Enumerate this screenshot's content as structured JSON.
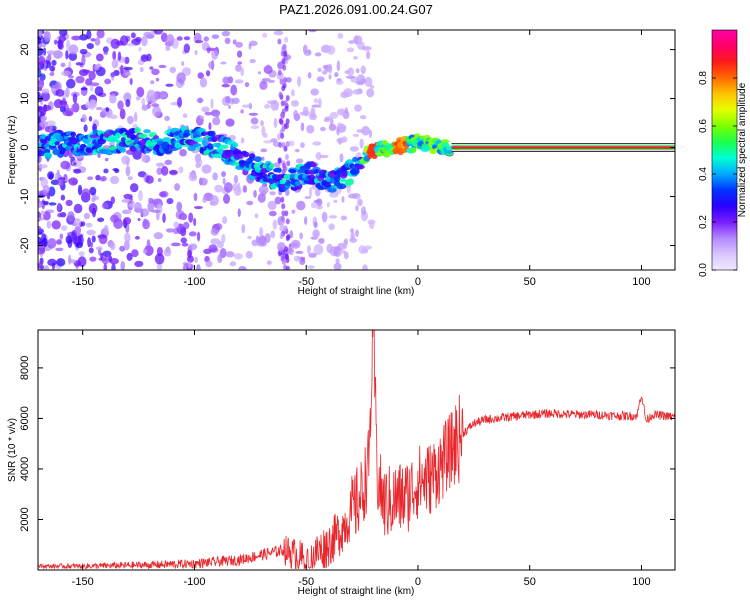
{
  "title": "PAZ1.2026.091.00.24.G07",
  "chart_data": [
    {
      "type": "heatmap",
      "xlabel": "Height of straight line (km)",
      "ylabel": "Frequency (Hz)",
      "xlim": [
        -170,
        115
      ],
      "ylim": [
        -25,
        24
      ],
      "xticks": [
        -150,
        -100,
        -50,
        0,
        50,
        100
      ],
      "yticks": [
        -20,
        -10,
        0,
        10,
        20
      ],
      "colorbar": {
        "label": "Normalized spectral amplitude",
        "range": [
          0,
          1
        ],
        "ticks": [
          "0.0",
          "0.2",
          "0.4",
          "0.6",
          "0.8"
        ],
        "tick_values": [
          0.0,
          0.2,
          0.4,
          0.6,
          0.8
        ],
        "colors": [
          "#f0eaff",
          "#d9c4ff",
          "#b388ff",
          "#7a1cff",
          "#2a00ff",
          "#0033ff",
          "#00aaff",
          "#00ffd5",
          "#1aff4d",
          "#7cff00",
          "#e6ff00",
          "#ffc400",
          "#ff6a00",
          "#ff1a1a",
          "#ff0066",
          "#ff00a8"
        ]
      },
      "ridge": [
        {
          "x": -170,
          "y": 0.0
        },
        {
          "x": -150,
          "y": 1.0
        },
        {
          "x": -130,
          "y": 1.5
        },
        {
          "x": -115,
          "y": 1.0
        },
        {
          "x": -100,
          "y": 2.0
        },
        {
          "x": -90,
          "y": 0.5
        },
        {
          "x": -80,
          "y": -2.0
        },
        {
          "x": -70,
          "y": -5.0
        },
        {
          "x": -60,
          "y": -7.0
        },
        {
          "x": -50,
          "y": -5.0
        },
        {
          "x": -40,
          "y": -7.0
        },
        {
          "x": -30,
          "y": -5.0
        },
        {
          "x": -25,
          "y": -2.0
        },
        {
          "x": -20,
          "y": -0.5
        },
        {
          "x": -10,
          "y": 0.0
        },
        {
          "x": 0,
          "y": 1.0
        },
        {
          "x": 15,
          "y": 0.0
        },
        {
          "x": 115,
          "y": 0.0
        }
      ]
    },
    {
      "type": "line",
      "xlabel": "Height of straight line (km)",
      "ylabel": "SNR (10 * v/v)",
      "xlim": [
        -170,
        115
      ],
      "ylim": [
        0,
        9500
      ],
      "xticks": [
        -150,
        -100,
        -50,
        0,
        50,
        100
      ],
      "yticks": [
        2000,
        4000,
        6000,
        8000
      ],
      "color": "#e8262b",
      "series": [
        {
          "name": "SNR",
          "x": [
            -170,
            -150,
            -120,
            -100,
            -80,
            -60,
            -55,
            -50,
            -45,
            -40,
            -35,
            -30,
            -25,
            -22,
            -20,
            -18,
            -15,
            -10,
            -5,
            0,
            5,
            10,
            15,
            20,
            25,
            30,
            40,
            50,
            60,
            70,
            80,
            90,
            98,
            100,
            102,
            105,
            110,
            115
          ],
          "y": [
            150,
            150,
            200,
            250,
            400,
            800,
            600,
            350,
            700,
            1000,
            1500,
            2200,
            3000,
            4200,
            9400,
            3500,
            2600,
            2800,
            2900,
            3500,
            3600,
            4100,
            4800,
            5400,
            5800,
            5950,
            6050,
            6150,
            6200,
            6150,
            6150,
            6100,
            6100,
            7000,
            5900,
            6150,
            6100,
            6050
          ]
        }
      ]
    }
  ]
}
